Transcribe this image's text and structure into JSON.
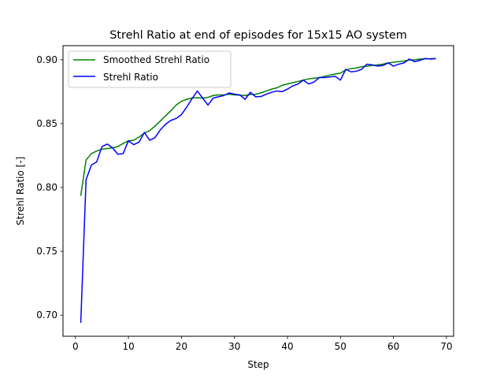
{
  "chart_data": {
    "type": "line",
    "title": "Strehl Ratio at end of episodes for 15x15 AO system",
    "xlabel": "Step",
    "ylabel": "Strehl Ratio [-]",
    "xlim": [
      -2.35,
      71.35
    ],
    "ylim": [
      0.6835,
      0.911
    ],
    "xticks": [
      0,
      10,
      20,
      30,
      40,
      50,
      60,
      70
    ],
    "yticks": [
      0.7,
      0.75,
      0.8,
      0.85,
      0.9
    ],
    "xtick_labels": [
      "0",
      "10",
      "20",
      "30",
      "40",
      "50",
      "60",
      "70"
    ],
    "ytick_labels": [
      "0.70",
      "0.75",
      "0.80",
      "0.85",
      "0.90"
    ],
    "grid": false,
    "legend_position": "top-left",
    "x": [
      1,
      2,
      3,
      4,
      5,
      6,
      7,
      8,
      9,
      10,
      11,
      12,
      13,
      14,
      15,
      16,
      17,
      18,
      19,
      20,
      21,
      22,
      23,
      24,
      25,
      26,
      27,
      28,
      29,
      30,
      31,
      32,
      33,
      34,
      35,
      36,
      37,
      38,
      39,
      40,
      41,
      42,
      43,
      44,
      45,
      46,
      47,
      48,
      49,
      50,
      51,
      52,
      53,
      54,
      55,
      56,
      57,
      58,
      59,
      60,
      61,
      62,
      63,
      64,
      65,
      66,
      67,
      68
    ],
    "series": [
      {
        "name": "Smoothed Strehl Ratio",
        "color": "#008000",
        "values": [
          0.7935,
          0.8215,
          0.8265,
          0.8285,
          0.83,
          0.8305,
          0.831,
          0.832,
          0.8345,
          0.8365,
          0.837,
          0.8395,
          0.8425,
          0.8445,
          0.848,
          0.852,
          0.856,
          0.86,
          0.8645,
          0.8675,
          0.869,
          0.87,
          0.8702,
          0.87,
          0.8705,
          0.872,
          0.8725,
          0.8725,
          0.873,
          0.8725,
          0.8722,
          0.872,
          0.8728,
          0.873,
          0.874,
          0.8755,
          0.877,
          0.878,
          0.88,
          0.881,
          0.882,
          0.883,
          0.884,
          0.885,
          0.8855,
          0.886,
          0.887,
          0.888,
          0.8888,
          0.8895,
          0.892,
          0.893,
          0.8935,
          0.8945,
          0.895,
          0.8955,
          0.896,
          0.8965,
          0.8975,
          0.898,
          0.8985,
          0.899,
          0.8998,
          0.9,
          0.9005,
          0.9007,
          0.9008,
          0.901
        ]
      },
      {
        "name": "Strehl Ratio",
        "color": "#0000ff",
        "values": [
          0.694,
          0.806,
          0.8175,
          0.82,
          0.832,
          0.834,
          0.831,
          0.826,
          0.8265,
          0.8365,
          0.8335,
          0.8355,
          0.843,
          0.837,
          0.839,
          0.845,
          0.8495,
          0.8525,
          0.854,
          0.857,
          0.863,
          0.8695,
          0.8755,
          0.87,
          0.8645,
          0.87,
          0.871,
          0.872,
          0.874,
          0.873,
          0.8725,
          0.869,
          0.8745,
          0.871,
          0.8712,
          0.873,
          0.8745,
          0.8755,
          0.875,
          0.877,
          0.8795,
          0.881,
          0.884,
          0.881,
          0.8825,
          0.886,
          0.886,
          0.8865,
          0.887,
          0.884,
          0.8925,
          0.8905,
          0.891,
          0.8925,
          0.8965,
          0.896,
          0.895,
          0.8955,
          0.8975,
          0.895,
          0.8965,
          0.8975,
          0.9005,
          0.8985,
          0.8995,
          0.901,
          0.9005,
          0.9008
        ]
      }
    ]
  }
}
